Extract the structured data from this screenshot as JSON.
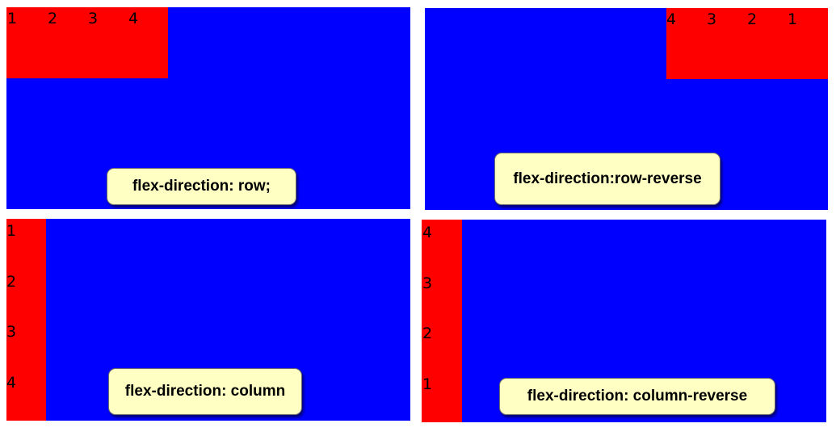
{
  "panels": {
    "row": {
      "caption": "flex-direction: row;",
      "items": [
        "1",
        "2",
        "3",
        "4"
      ]
    },
    "row_reverse": {
      "caption": "flex-direction:row-reverse",
      "items": [
        "1",
        "2",
        "3",
        "4"
      ]
    },
    "column": {
      "caption": "flex-direction: column",
      "items": [
        "1",
        "2",
        "3",
        "4"
      ]
    },
    "column_reverse": {
      "caption": "flex-direction: column-reverse",
      "items": [
        "1",
        "2",
        "3",
        "4"
      ]
    }
  },
  "colors": {
    "container": "#0000ff",
    "items": "#ff0000",
    "caption_background": "#ffffc4"
  }
}
